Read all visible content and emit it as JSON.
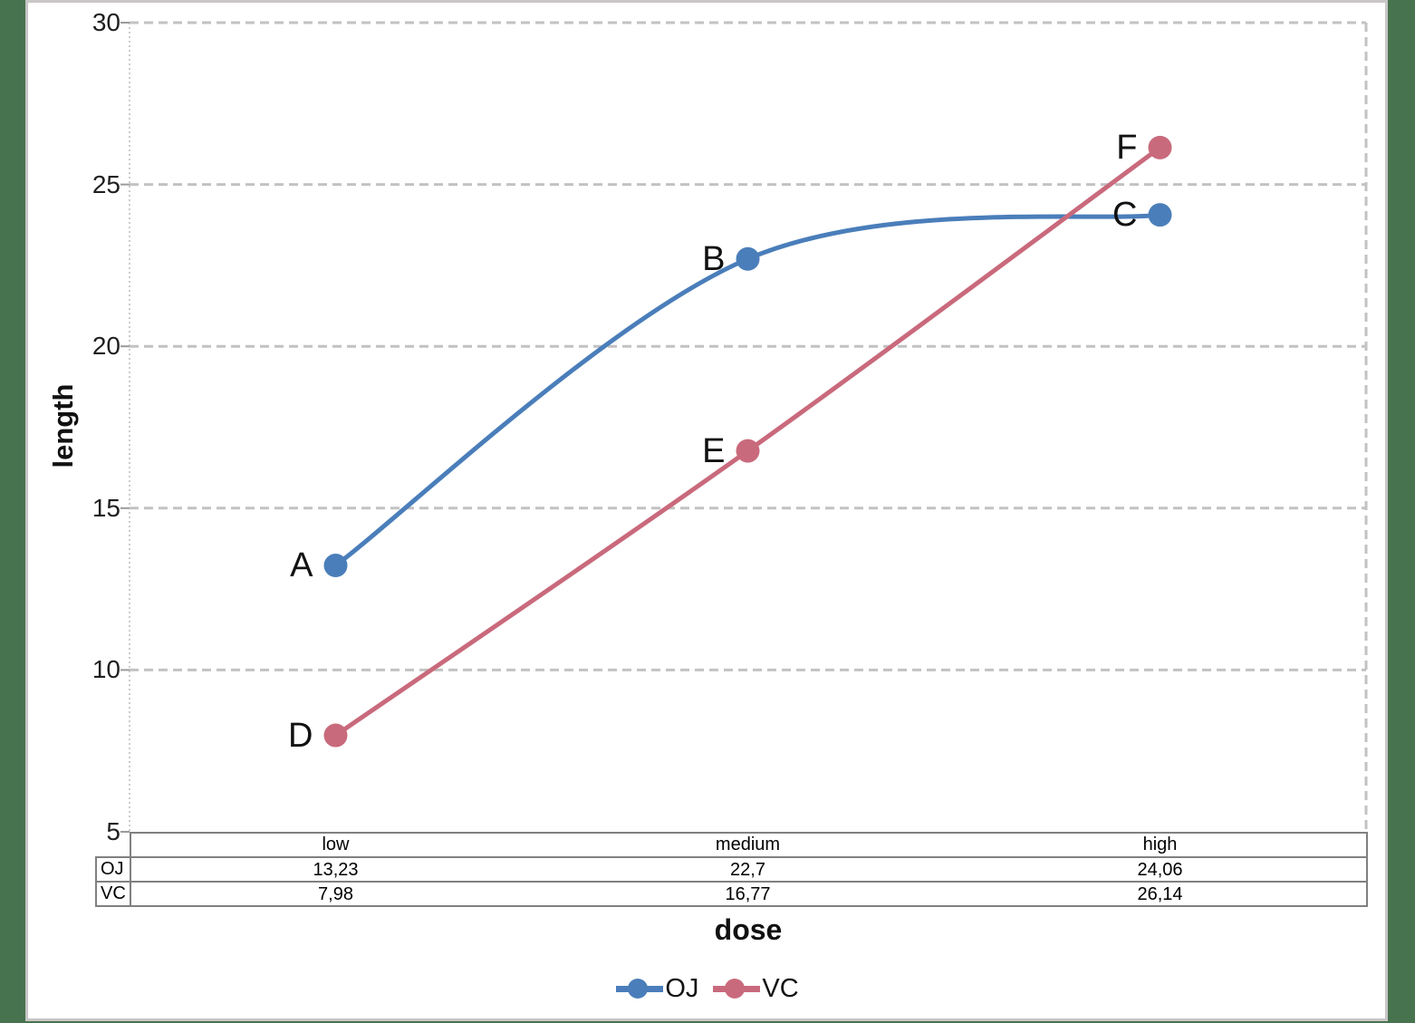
{
  "canvas": {
    "background_color": "#47734F",
    "slide_background": "#ffffff",
    "slide_border_color": "#c9c6c5"
  },
  "chart_data": {
    "type": "line",
    "title": "",
    "xlabel": "dose",
    "ylabel": "length",
    "categories": [
      "low",
      "medium",
      "high"
    ],
    "series": [
      {
        "name": "OJ",
        "color": "#4a7eba",
        "values": [
          13.23,
          22.7,
          24.06
        ],
        "display_values": [
          "13,23",
          "22,7",
          "24,06"
        ],
        "point_labels": [
          "A",
          "B",
          "C"
        ]
      },
      {
        "name": "VC",
        "color": "#c96a7c",
        "values": [
          7.98,
          16.77,
          26.14
        ],
        "display_values": [
          "7,98",
          "16,77",
          "26,14"
        ],
        "point_labels": [
          "D",
          "E",
          "F"
        ]
      }
    ],
    "y_axis": {
      "min": 5,
      "max": 30,
      "tick_interval": 5,
      "tick_labels": [
        "30",
        "25",
        "20",
        "15",
        "10",
        "5"
      ]
    },
    "grid": {
      "horizontal": true,
      "style": "dashed",
      "color": "#c2c2c2"
    },
    "legend": {
      "position": "bottom",
      "entries": [
        "OJ",
        "VC"
      ]
    },
    "data_table": {
      "shown": true,
      "row_headers": [
        "OJ",
        "VC"
      ],
      "column_headers": [
        "low",
        "medium",
        "high"
      ]
    },
    "smooth_lines": true
  }
}
